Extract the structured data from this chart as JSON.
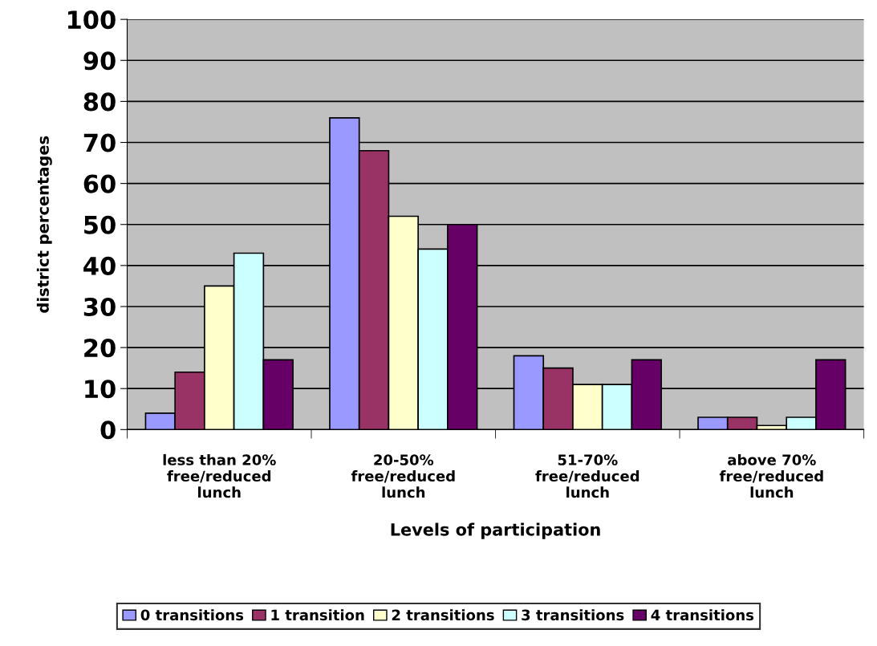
{
  "chart_data": {
    "type": "bar",
    "xlabel": "Levels of participation",
    "ylabel": "district percentages",
    "categories": [
      "less than 20%\nfree/reduced\nlunch",
      "20-50%\nfree/reduced\nlunch",
      "51-70%\nfree/reduced\nlunch",
      "above 70%\nfree/reduced\nlunch"
    ],
    "series": [
      {
        "name": "0 transitions",
        "color": "#9999ff",
        "values": [
          4,
          76,
          18,
          3
        ]
      },
      {
        "name": "1 transition",
        "color": "#993366",
        "values": [
          14,
          68,
          15,
          3
        ]
      },
      {
        "name": "2 transitions",
        "color": "#ffffcc",
        "values": [
          35,
          52,
          11,
          1
        ]
      },
      {
        "name": "3 transitions",
        "color": "#ccffff",
        "values": [
          43,
          44,
          11,
          3
        ]
      },
      {
        "name": "4 transitions",
        "color": "#660066",
        "values": [
          17,
          50,
          17,
          17
        ]
      }
    ],
    "ylim": [
      0,
      100
    ],
    "yticks": [
      0,
      10,
      20,
      30,
      40,
      50,
      60,
      70,
      80,
      90,
      100
    ],
    "grid": "y",
    "legend": "bottom"
  }
}
